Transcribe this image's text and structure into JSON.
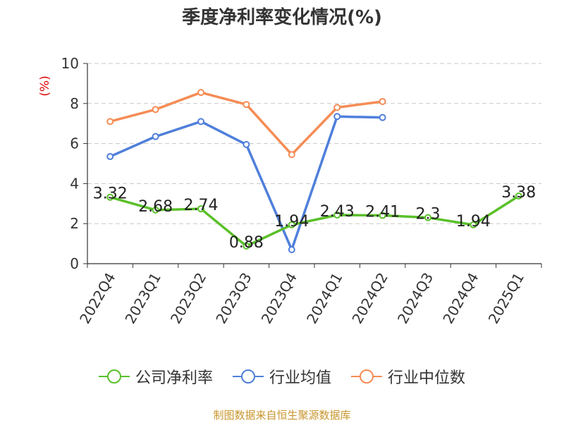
{
  "chart_data": {
    "type": "line",
    "title": "季度净利率变化情况(%)",
    "ylabel": "(%)",
    "xlabel": "",
    "categories": [
      "2022Q4",
      "2023Q1",
      "2023Q2",
      "2023Q3",
      "2023Q4",
      "2024Q1",
      "2024Q2",
      "2024Q3",
      "2024Q4",
      "2025Q1"
    ],
    "ylim": [
      0,
      10
    ],
    "yticks": [
      "0",
      "2",
      "4",
      "6",
      "8",
      "10"
    ],
    "grid": true,
    "legend_position": "bottom",
    "series": [
      {
        "name": "公司净利率",
        "color": "#5ac02a",
        "values": [
          3.32,
          2.68,
          2.74,
          0.88,
          1.94,
          2.43,
          2.41,
          2.3,
          1.94,
          3.38
        ],
        "labels": [
          "3.32",
          "2.68",
          "2.74",
          "0.88",
          "1.94",
          "2.43",
          "2.41",
          "2.3",
          "1.94",
          "3.38"
        ]
      },
      {
        "name": "行业均值",
        "color": "#4f7fdb",
        "values": [
          5.35,
          6.35,
          7.1,
          5.95,
          0.7,
          7.35,
          7.3,
          null,
          null,
          null
        ]
      },
      {
        "name": "行业中位数",
        "color": "#f58c55",
        "values": [
          7.1,
          7.7,
          8.55,
          7.95,
          5.45,
          7.8,
          8.1,
          null,
          null,
          null
        ]
      }
    ]
  },
  "footer": "制图数据来自恒生聚源数据库"
}
